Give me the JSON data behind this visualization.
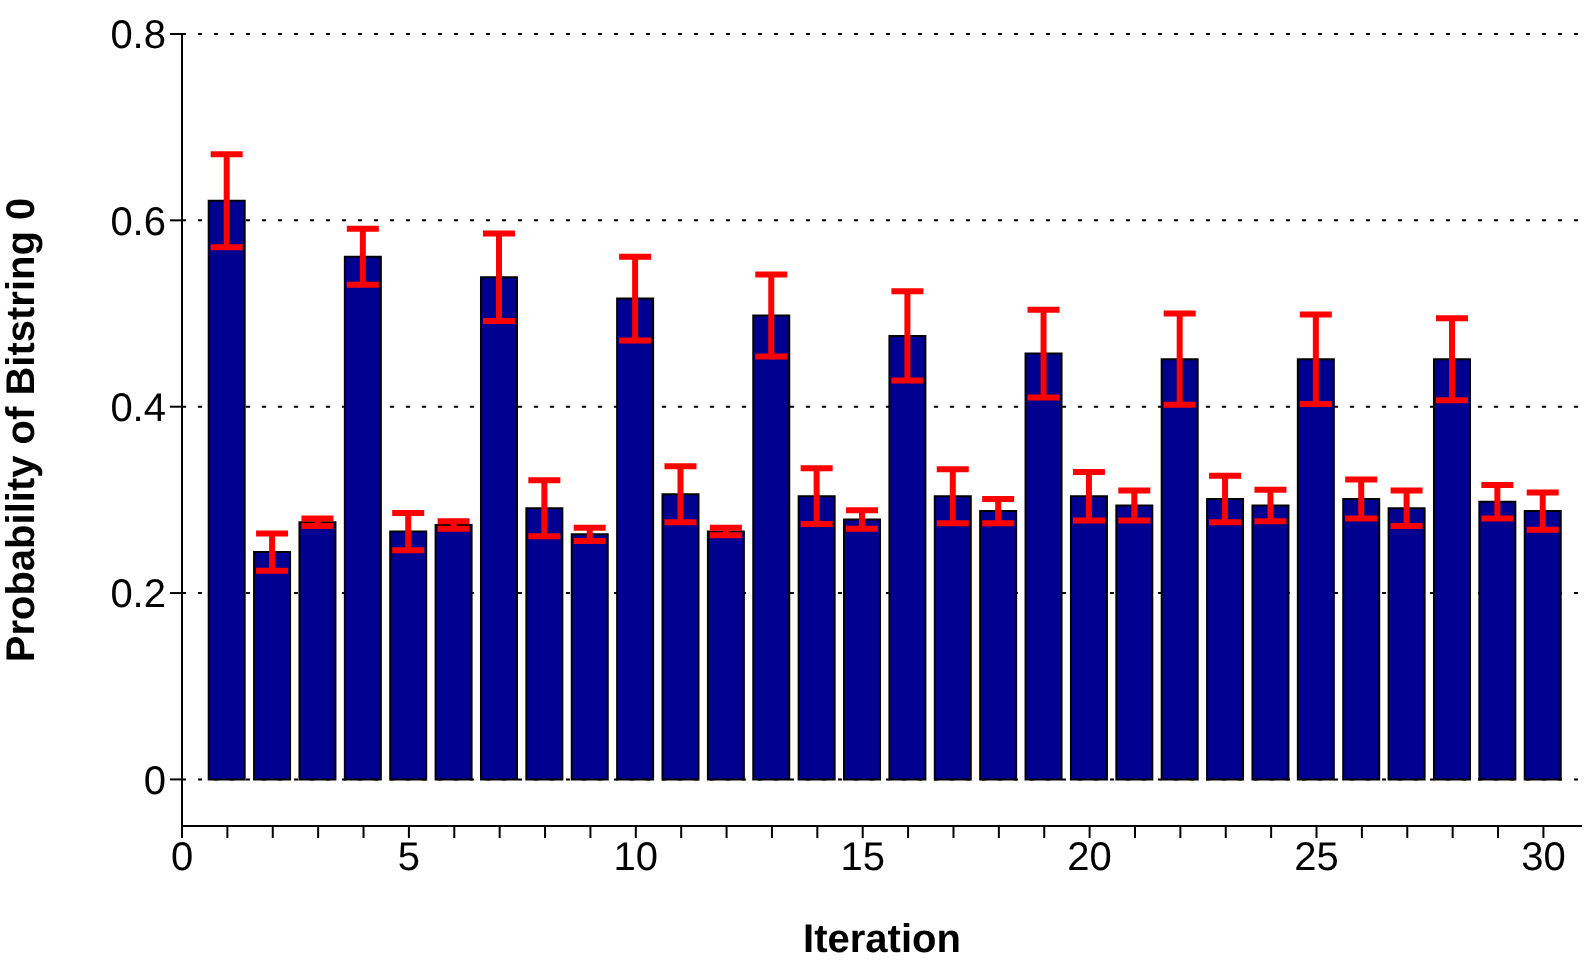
{
  "chart_data": {
    "type": "bar",
    "xlabel": "Iteration",
    "ylabel": "Probability of Bitstring 0",
    "x": [
      1,
      2,
      3,
      4,
      5,
      6,
      7,
      8,
      9,
      10,
      11,
      12,
      13,
      14,
      15,
      16,
      17,
      18,
      19,
      20,
      21,
      22,
      23,
      24,
      25,
      26,
      27,
      28,
      29,
      30
    ],
    "values": [
      0.621,
      0.244,
      0.276,
      0.561,
      0.266,
      0.273,
      0.539,
      0.291,
      0.263,
      0.516,
      0.306,
      0.266,
      0.498,
      0.304,
      0.279,
      0.476,
      0.304,
      0.288,
      0.457,
      0.304,
      0.294,
      0.451,
      0.301,
      0.294,
      0.451,
      0.301,
      0.291,
      0.451,
      0.298,
      0.288
    ],
    "errors": [
      0.05,
      0.02,
      0.004,
      0.03,
      0.02,
      0.004,
      0.047,
      0.03,
      0.007,
      0.045,
      0.03,
      0.004,
      0.044,
      0.03,
      0.01,
      0.048,
      0.029,
      0.013,
      0.047,
      0.026,
      0.016,
      0.049,
      0.025,
      0.017,
      0.048,
      0.021,
      0.019,
      0.044,
      0.018,
      0.02
    ],
    "color": "#000090",
    "xlim": [
      0,
      30.85
    ],
    "ylim": [
      -0.05,
      0.8
    ],
    "xticks": [
      0,
      {
        "value": 1,
        "label": null
      },
      {
        "value": 2,
        "label": null
      },
      {
        "value": 3,
        "label": null
      },
      {
        "value": 4,
        "label": null
      },
      5,
      {
        "value": 6,
        "label": null
      },
      {
        "value": 7,
        "label": null
      },
      {
        "value": 8,
        "label": null
      },
      {
        "value": 9,
        "label": null
      },
      10,
      {
        "value": 11,
        "label": null
      },
      {
        "value": 12,
        "label": null
      },
      {
        "value": 13,
        "label": null
      },
      {
        "value": 14,
        "label": null
      },
      15,
      {
        "value": 16,
        "label": null
      },
      {
        "value": 17,
        "label": null
      },
      {
        "value": 18,
        "label": null
      },
      {
        "value": 19,
        "label": null
      },
      20,
      {
        "value": 21,
        "label": null
      },
      {
        "value": 22,
        "label": null
      },
      {
        "value": 23,
        "label": null
      },
      {
        "value": 24,
        "label": null
      },
      25,
      {
        "value": 26,
        "label": null
      },
      {
        "value": 27,
        "label": null
      },
      {
        "value": 28,
        "label": null
      },
      {
        "value": 29,
        "label": null
      },
      30
    ],
    "yticks": [
      0,
      0.2,
      0.4,
      0.6,
      0.8
    ],
    "grid": "y"
  }
}
